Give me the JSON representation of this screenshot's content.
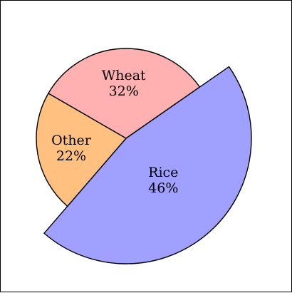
{
  "chart_data": {
    "type": "pie",
    "title": "",
    "slices": [
      {
        "label": "Wheat",
        "value": 32,
        "value_label": "32%",
        "color": "#ffb0b0",
        "exploded": false
      },
      {
        "label": "Rice",
        "value": 46,
        "value_label": "46%",
        "color": "#9fa0ff",
        "exploded": true
      },
      {
        "label": "Other",
        "value": 22,
        "value_label": "22%",
        "color": "#ffc080",
        "exploded": false
      }
    ],
    "legend": "none",
    "border": true
  }
}
